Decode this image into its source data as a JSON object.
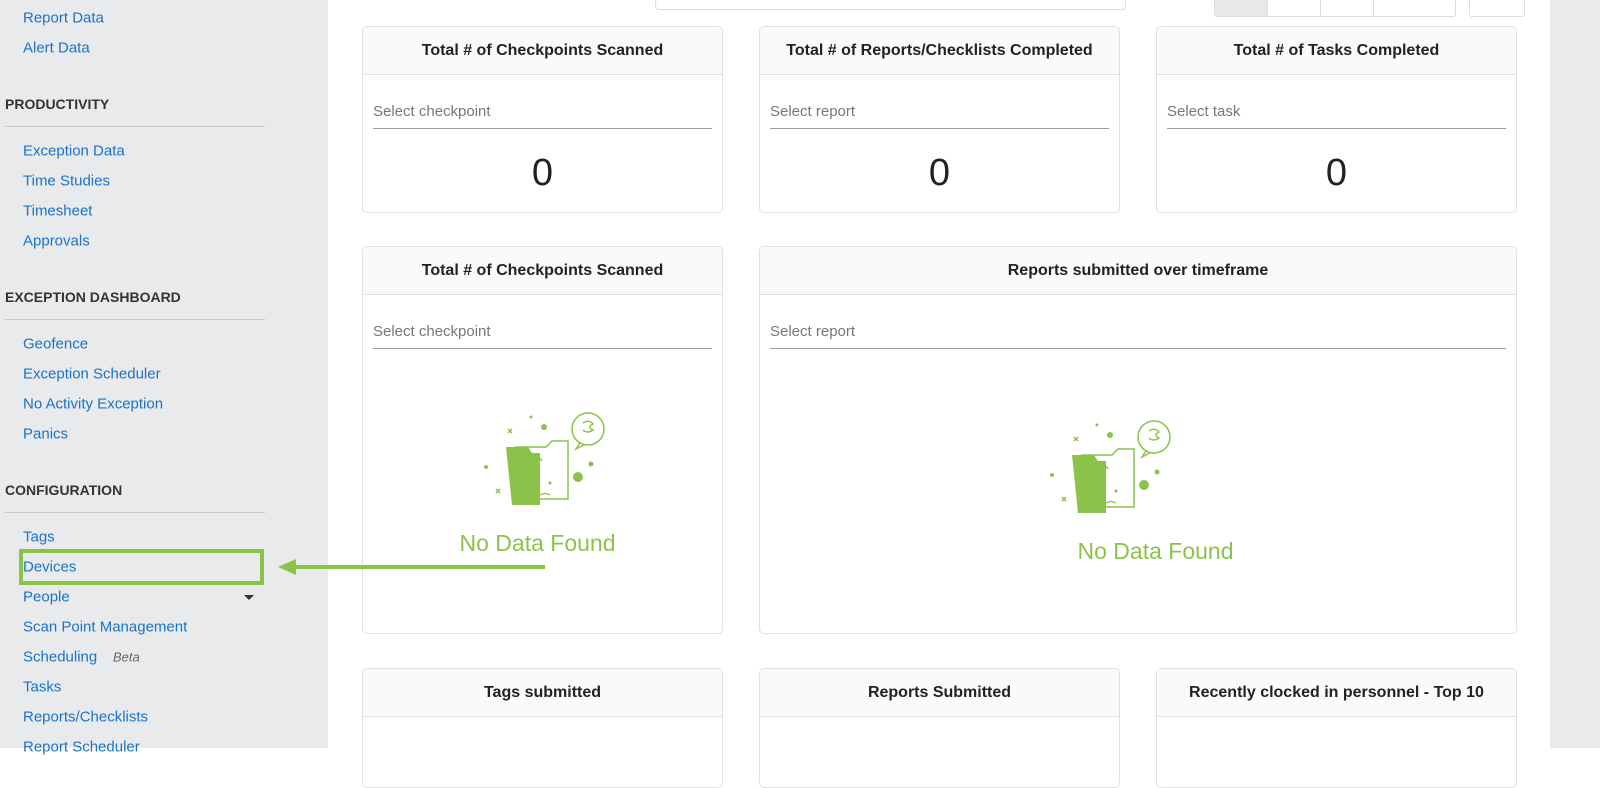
{
  "sidebar": {
    "top_links": [
      "Report Data",
      "Alert Data"
    ],
    "sections": [
      {
        "heading": "PRODUCTIVITY",
        "links": [
          "Exception Data",
          "Time Studies",
          "Timesheet",
          "Approvals"
        ]
      },
      {
        "heading": "EXCEPTION DASHBOARD",
        "links": [
          "Geofence",
          "Exception Scheduler",
          "No Activity Exception",
          "Panics"
        ]
      },
      {
        "heading": "CONFIGURATION",
        "links": [
          "Tags",
          "Devices",
          "People",
          "Scan Point Management",
          "Scheduling",
          "Tasks",
          "Reports/Checklists",
          "Report Scheduler"
        ],
        "badge": "Beta"
      }
    ]
  },
  "cards": [
    {
      "title": "Total # of Checkpoints Scanned",
      "placeholder": "Select checkpoint",
      "value": 0
    },
    {
      "title": "Total # of Reports/Checklists Completed",
      "placeholder": "Select report",
      "value": 0
    },
    {
      "title": "Total # of Tasks Completed",
      "placeholder": "Select task",
      "value": 0
    }
  ],
  "charts": [
    {
      "title": "Total # of Checkpoints Scanned",
      "placeholder": "Select checkpoint",
      "empty_text": "No Data Found"
    },
    {
      "title": "Reports submitted over timeframe",
      "placeholder": "Select report",
      "empty_text": "No Data Found"
    }
  ],
  "bottom_cards": [
    {
      "title": "Tags submitted"
    },
    {
      "title": "Reports Submitted"
    },
    {
      "title": "Recently clocked in personnel - Top 10"
    }
  ]
}
